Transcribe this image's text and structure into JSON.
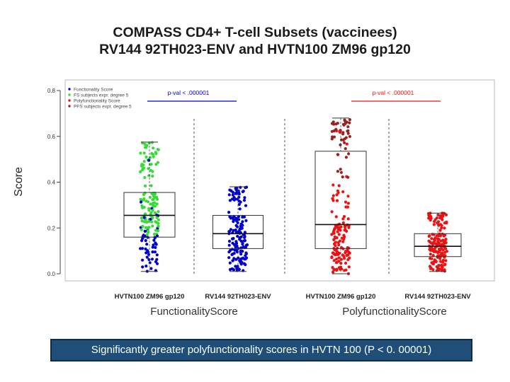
{
  "title": {
    "line1": "COMPASS CD4+ T-cell Subsets (vaccinees)",
    "line2": "RV144 92TH023-ENV and HVTN100 ZM96 gp120"
  },
  "caption": "Significantly greater polyfunctionality scores in HVTN 100 (P < 0. 00001)",
  "colors": {
    "functionality": "#0000cc",
    "fs_highlight": "#33dd33",
    "polyfunctionality": "#ee1111",
    "pfs_highlight": "#992222",
    "caption_bg": "#1f4e79"
  },
  "chart_data": {
    "type": "box",
    "ylabel": "Score",
    "ylim": [
      0,
      0.8
    ],
    "yticks": [
      "0.0",
      "0.2",
      "0.4",
      "0.6",
      "0.8"
    ],
    "legend": {
      "position": "top-left",
      "entries": [
        {
          "label": "Functionality Score",
          "color": "#0000cc"
        },
        {
          "label": "FS subjects expr. degree 5",
          "color": "#33dd33"
        },
        {
          "label": "Polyfunctionality Score",
          "color": "#ee1111"
        },
        {
          "label": "PFS subjects expr. degree 5",
          "color": "#992222"
        }
      ]
    },
    "groups": [
      {
        "label": "FunctionalityScore",
        "pval": "p-val < .000001",
        "pval_color": "#0000cc",
        "boxes": [
          {
            "label": "HVTN100 ZM96 gp120",
            "min": 0.01,
            "q1": 0.16,
            "median": 0.255,
            "q3": 0.355,
            "max": 0.575,
            "point_color": "#0000cc",
            "highlight_color": "#33dd33",
            "highlight_above": 0.17,
            "n_points": 170
          },
          {
            "label": "RV144 92TH023-ENV",
            "min": 0.01,
            "q1": 0.11,
            "median": 0.175,
            "q3": 0.255,
            "max": 0.38,
            "point_color": "#0000cc",
            "n_points": 160
          }
        ]
      },
      {
        "label": "PolyfunctionalityScore",
        "pval": "p-val < .000001",
        "pval_color": "#ee1111",
        "boxes": [
          {
            "label": "HVTN100 ZM96 gp120",
            "min": 0.0,
            "q1": 0.11,
            "median": 0.215,
            "q3": 0.535,
            "max": 0.68,
            "point_color": "#ee1111",
            "highlight_color": "#992222",
            "highlight_above": 0.4,
            "n_points": 170
          },
          {
            "label": "RV144 92TH023-ENV",
            "min": 0.01,
            "q1": 0.075,
            "median": 0.12,
            "q3": 0.175,
            "max": 0.265,
            "point_color": "#ee1111",
            "n_points": 160
          }
        ]
      }
    ]
  }
}
